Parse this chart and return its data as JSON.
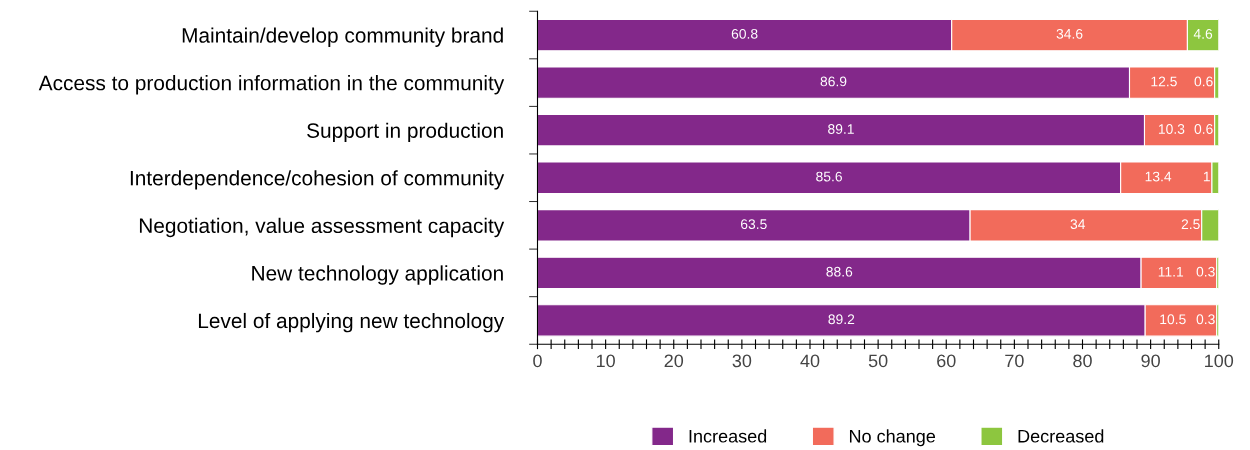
{
  "chart_data": {
    "type": "bar",
    "orientation": "horizontal",
    "stacked": true,
    "categories": [
      "Maintain/develop community brand",
      "Access to production information in the community",
      "Support in production",
      "Interdependence/cohesion of community",
      "Negotiation, value assessment capacity",
      "New technology application",
      "Level of applying new technology"
    ],
    "series": [
      {
        "name": "Increased",
        "color": "#83288a",
        "values": [
          60.8,
          86.9,
          89.1,
          85.6,
          63.5,
          88.6,
          89.2
        ]
      },
      {
        "name": "No change",
        "color": "#f26b5b",
        "values": [
          34.6,
          12.5,
          10.3,
          13.4,
          34,
          11.1,
          10.5
        ]
      },
      {
        "name": "Decreased",
        "color": "#8dc63f",
        "values": [
          4.6,
          0.6,
          0.6,
          1,
          2.5,
          0.3,
          0.3
        ]
      }
    ],
    "data_labels": true,
    "xlim": [
      0,
      100
    ],
    "xticks": [
      0,
      {
        "value": 2,
        "label": null
      },
      {
        "value": 4,
        "label": null
      },
      {
        "value": 6,
        "label": null
      },
      {
        "value": 8,
        "label": null
      },
      10,
      {
        "value": 12,
        "label": null
      },
      {
        "value": 14,
        "label": null
      },
      {
        "value": 16,
        "label": null
      },
      {
        "value": 18,
        "label": null
      },
      20,
      {
        "value": 22,
        "label": null
      },
      {
        "value": 24,
        "label": null
      },
      {
        "value": 26,
        "label": null
      },
      {
        "value": 28,
        "label": null
      },
      30,
      {
        "value": 32,
        "label": null
      },
      {
        "value": 34,
        "label": null
      },
      {
        "value": 36,
        "label": null
      },
      {
        "value": 38,
        "label": null
      },
      40,
      {
        "value": 42,
        "label": null
      },
      {
        "value": 44,
        "label": null
      },
      {
        "value": 46,
        "label": null
      },
      {
        "value": 48,
        "label": null
      },
      50,
      {
        "value": 52,
        "label": null
      },
      {
        "value": 54,
        "label": null
      },
      {
        "value": 56,
        "label": null
      },
      {
        "value": 58,
        "label": null
      },
      60,
      {
        "value": 62,
        "label": null
      },
      {
        "value": 64,
        "label": null
      },
      {
        "value": 66,
        "label": null
      },
      {
        "value": 68,
        "label": null
      },
      70,
      {
        "value": 72,
        "label": null
      },
      {
        "value": 74,
        "label": null
      },
      {
        "value": 76,
        "label": null
      },
      {
        "value": 78,
        "label": null
      },
      80,
      {
        "value": 82,
        "label": null
      },
      {
        "value": 84,
        "label": null
      },
      {
        "value": 86,
        "label": null
      },
      {
        "value": 88,
        "label": null
      },
      90,
      {
        "value": 92,
        "label": null
      },
      {
        "value": 94,
        "label": null
      },
      {
        "value": 96,
        "label": null
      },
      {
        "value": 98,
        "label": null
      },
      100
    ],
    "grid": false,
    "legend": "bottom"
  }
}
